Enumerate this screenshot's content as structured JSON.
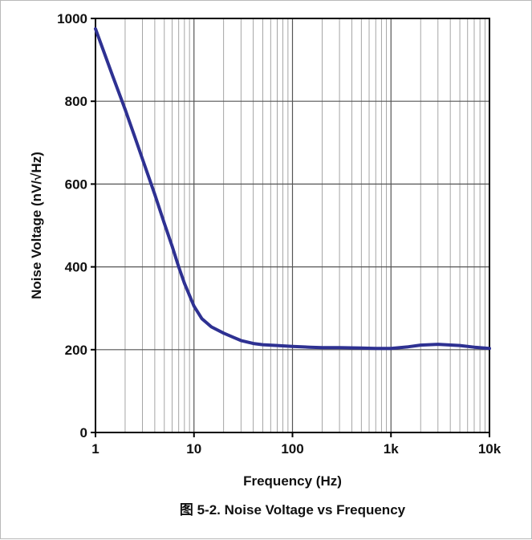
{
  "caption": "图 5-2. Noise Voltage vs Frequency",
  "colors": {
    "series": "#2e3192",
    "grid": "#8f8f8f",
    "axis": "#000000"
  },
  "chart_data": {
    "type": "line",
    "xlabel": "Frequency (Hz)",
    "ylabel": "Noise Voltage (nV/√Hz)",
    "xscale": "log",
    "xlim": [
      1,
      10000
    ],
    "ylim": [
      0,
      1000
    ],
    "grid": true,
    "x_tick_values": [
      1,
      10,
      100,
      1000,
      10000
    ],
    "x_tick_labels": [
      "1",
      "10",
      "100",
      "1k",
      "10k"
    ],
    "y_tick_values": [
      0,
      200,
      400,
      600,
      800,
      1000
    ],
    "y_tick_labels": [
      "0",
      "200",
      "400",
      "600",
      "800",
      "1000"
    ],
    "series": [
      {
        "x": [
          1,
          1.5,
          2,
          2.5,
          3,
          4,
          5,
          6,
          7,
          8,
          10,
          12,
          15,
          20,
          25,
          30,
          40,
          50,
          70,
          100,
          150,
          200,
          300,
          500,
          700,
          1000,
          1500,
          2000,
          3000,
          5000,
          7000,
          10000
        ],
        "y": [
          975,
          860,
          780,
          715,
          660,
          575,
          505,
          450,
          400,
          360,
          305,
          275,
          255,
          240,
          230,
          222,
          215,
          212,
          210,
          208,
          206,
          205,
          205,
          204,
          203,
          203,
          207,
          211,
          213,
          210,
          206,
          203
        ]
      }
    ]
  }
}
